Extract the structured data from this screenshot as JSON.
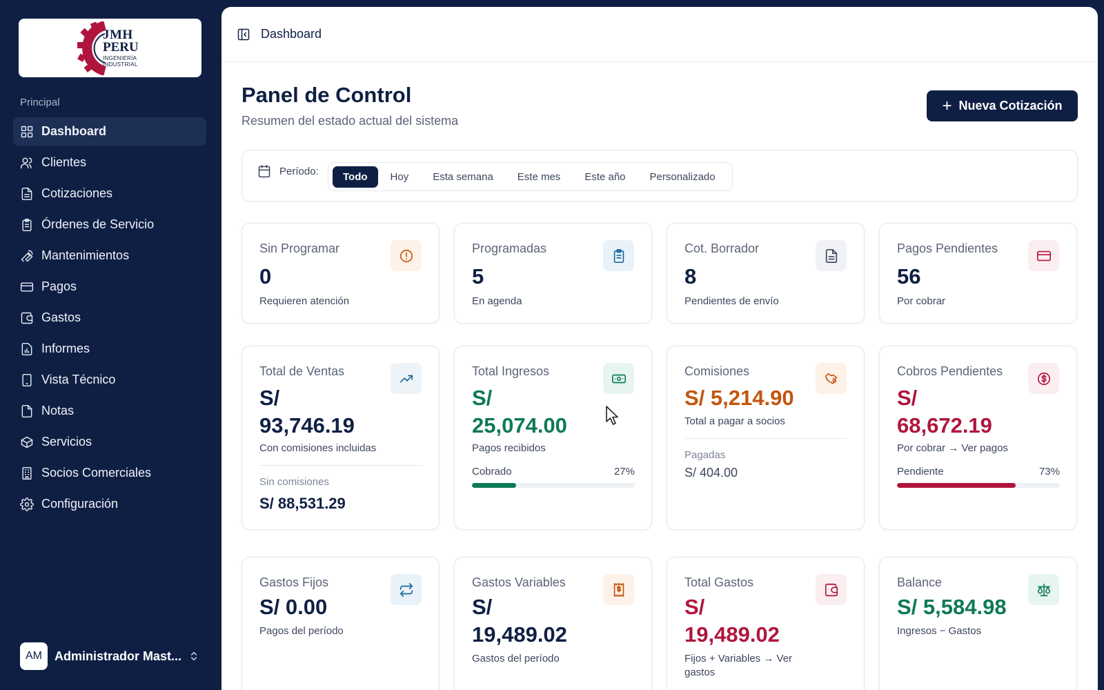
{
  "sidebar": {
    "logo": {
      "line1": "JMH",
      "line2": "PERU",
      "line3": "INGENIERÍA",
      "line4": "INDUSTRIAL"
    },
    "section_label": "Principal",
    "items": [
      {
        "label": "Dashboard",
        "icon": "grid-icon"
      },
      {
        "label": "Clientes",
        "icon": "users-icon"
      },
      {
        "label": "Cotizaciones",
        "icon": "file-text-icon"
      },
      {
        "label": "Órdenes de Servicio",
        "icon": "clipboard-icon"
      },
      {
        "label": "Mantenimientos",
        "icon": "wrench-icon"
      },
      {
        "label": "Pagos",
        "icon": "credit-card-icon"
      },
      {
        "label": "Gastos",
        "icon": "wallet-icon"
      },
      {
        "label": "Informes",
        "icon": "report-icon"
      },
      {
        "label": "Vista Técnico",
        "icon": "tablet-icon"
      },
      {
        "label": "Notas",
        "icon": "note-icon"
      },
      {
        "label": "Servicios",
        "icon": "package-icon"
      },
      {
        "label": "Socios Comerciales",
        "icon": "building-icon"
      },
      {
        "label": "Configuración",
        "icon": "gear-icon"
      }
    ],
    "user": {
      "initials": "AM",
      "name": "Administrador Mast..."
    }
  },
  "header": {
    "breadcrumb": "Dashboard"
  },
  "page": {
    "title": "Panel de Control",
    "subtitle": "Resumen del estado actual del sistema",
    "new_button": "Nueva Cotización"
  },
  "filter": {
    "label": "Período:",
    "options": [
      "Todo",
      "Hoy",
      "Esta semana",
      "Este mes",
      "Este año",
      "Personalizado"
    ],
    "selected": "Todo"
  },
  "cards": {
    "sin_programar": {
      "title": "Sin Programar",
      "value": "0",
      "sub": "Requieren atención"
    },
    "programadas": {
      "title": "Programadas",
      "value": "5",
      "sub": "En agenda"
    },
    "cot_borrador": {
      "title": "Cot. Borrador",
      "value": "8",
      "sub": "Pendientes de envío"
    },
    "pagos_pendientes": {
      "title": "Pagos Pendientes",
      "value": "56",
      "sub": "Por cobrar"
    },
    "total_ventas": {
      "title": "Total de Ventas",
      "value_l1": "S/",
      "value_l2": "93,746.19",
      "sub": "Con comisiones incluidas",
      "sub2": "Sin comisiones",
      "val2": "S/ 88,531.29"
    },
    "total_ingresos": {
      "title": "Total Ingresos",
      "value_l1": "S/",
      "value_l2": "25,074.00",
      "sub": "Pagos recibidos",
      "bar_label": "Cobrado",
      "bar_pct_text": "27%",
      "bar_pct": 27,
      "bar_color": "#0e7a55"
    },
    "comisiones": {
      "title": "Comisiones",
      "value": "S/ 5,214.90",
      "sub": "Total a pagar a socios",
      "sub2": "Pagadas",
      "val2": "S/ 404.00"
    },
    "cobros_pendientes": {
      "title": "Cobros Pendientes",
      "value_l1": "S/",
      "value_l2": "68,672.19",
      "sub": "Por cobrar → Ver pagos",
      "bar_label": "Pendiente",
      "bar_pct_text": "73%",
      "bar_pct": 73,
      "bar_color": "#b0163d"
    },
    "gastos_fijos": {
      "title": "Gastos Fijos",
      "value": "S/ 0.00",
      "sub": "Pagos del período"
    },
    "gastos_variables": {
      "title": "Gastos Variables",
      "value_l1": "S/",
      "value_l2": "19,489.02",
      "sub": "Gastos del período"
    },
    "total_gastos": {
      "title": "Total Gastos",
      "value_l1": "S/",
      "value_l2": "19,489.02",
      "sub_l1": "Fijos + Variables → Ver",
      "sub_l2": "gastos"
    },
    "balance": {
      "title": "Balance",
      "value": "S/ 5,584.98",
      "sub": "Ingresos − Gastos"
    }
  },
  "colors": {
    "navy": "#0f1f44",
    "green": "#0e7a55",
    "orange": "#c2560e",
    "red": "#b0163d",
    "blue": "#1a6a9a"
  }
}
